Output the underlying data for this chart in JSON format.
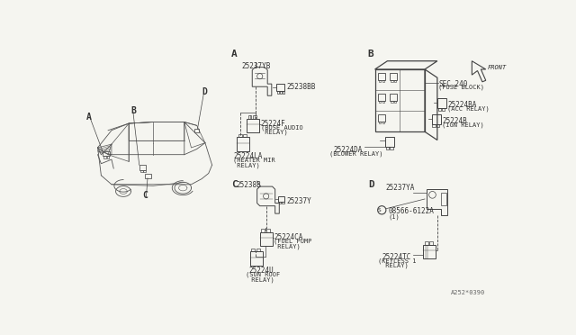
{
  "bg_color": "#f5f5f0",
  "line_color": "#444444",
  "text_color": "#333333",
  "part_number": "A252*0390",
  "section_A_label": "A",
  "section_B_label": "B",
  "section_C_label": "C",
  "section_D_label": "D",
  "font_size_label": 7,
  "font_size_part": 5.5,
  "font_size_paren": 5.0
}
